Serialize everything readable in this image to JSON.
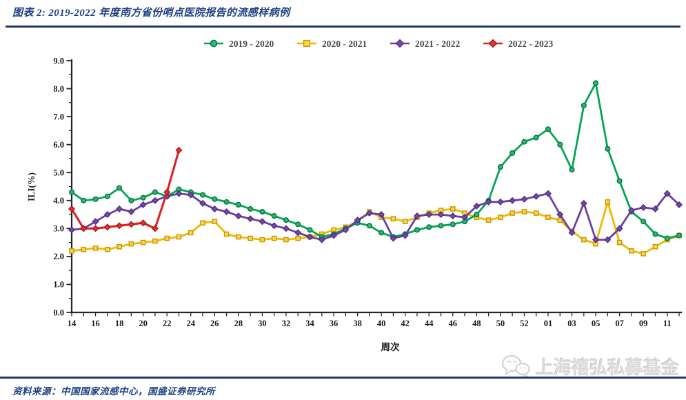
{
  "header": {
    "title": "图表 2: 2019-2022 年度南方省份哨点医院报告的流感样病例"
  },
  "footer": {
    "source": "资料来源：中国国家流感中心，国盛证券研究所",
    "watermark": "上海禧弘私募基金"
  },
  "colors": {
    "accent_navy": "#1F3864",
    "title_blue": "#1E4080",
    "axis": "#262626",
    "legend_text": "#4a4a4a"
  },
  "chart_data": {
    "type": "line",
    "title": "2019-2022 年度南方省份哨点医院报告的流感样病例",
    "xlabel": "周次",
    "ylabel": "ILI(%)",
    "ylim": [
      0,
      9
    ],
    "grid": false,
    "legend_position": "top",
    "x_count": 52,
    "x_tick_every": 2,
    "x_tick_labels": [
      "14",
      "16",
      "18",
      "20",
      "22",
      "24",
      "26",
      "28",
      "30",
      "32",
      "34",
      "36",
      "38",
      "40",
      "42",
      "44",
      "46",
      "48",
      "50",
      "52",
      "01",
      "03",
      "05",
      "07",
      "09",
      "11"
    ],
    "y_tick_labels": [
      "0.0",
      "1.0",
      "2.0",
      "3.0",
      "4.0",
      "5.0",
      "6.0",
      "7.0",
      "8.0",
      "9.0"
    ],
    "series": [
      {
        "name": "2019 - 2020",
        "marker": "circle",
        "color": "#00A651",
        "marker_fill": "#33B673",
        "marker_edge": "#007A3B",
        "values": [
          4.3,
          4.0,
          4.05,
          4.15,
          4.45,
          4.0,
          4.1,
          4.3,
          4.15,
          4.4,
          4.3,
          4.2,
          4.05,
          3.95,
          3.85,
          3.7,
          3.6,
          3.45,
          3.3,
          3.15,
          2.95,
          2.7,
          2.8,
          3.0,
          3.2,
          3.1,
          2.85,
          2.7,
          2.8,
          2.95,
          3.05,
          3.1,
          3.15,
          3.25,
          3.5,
          4.0,
          5.2,
          5.7,
          6.1,
          6.25,
          6.55,
          6.0,
          5.1,
          7.4,
          8.2,
          5.85,
          4.7,
          3.6,
          3.25,
          2.8,
          2.65,
          2.75
        ]
      },
      {
        "name": "2020 - 2021",
        "marker": "square",
        "color": "#EFB800",
        "marker_fill": "#FFD24D",
        "marker_edge": "#C79600",
        "values": [
          2.2,
          2.25,
          2.3,
          2.25,
          2.35,
          2.45,
          2.5,
          2.55,
          2.65,
          2.7,
          2.85,
          3.2,
          3.25,
          2.8,
          2.7,
          2.65,
          2.6,
          2.65,
          2.6,
          2.65,
          2.7,
          2.8,
          2.95,
          3.05,
          3.25,
          3.6,
          3.4,
          3.35,
          3.25,
          3.4,
          3.55,
          3.65,
          3.7,
          3.55,
          3.4,
          3.3,
          3.4,
          3.55,
          3.6,
          3.55,
          3.4,
          3.3,
          2.9,
          2.6,
          2.45,
          3.95,
          2.5,
          2.2,
          2.1,
          2.35,
          2.6,
          2.75
        ]
      },
      {
        "name": "2021 - 2022",
        "marker": "diamond",
        "color": "#6B3FA0",
        "marker_fill": "#7448AB",
        "marker_edge": "#502B82",
        "values": [
          2.95,
          3.0,
          3.25,
          3.5,
          3.7,
          3.6,
          3.85,
          4.0,
          4.15,
          4.25,
          4.2,
          3.9,
          3.7,
          3.6,
          3.45,
          3.35,
          3.25,
          3.1,
          3.0,
          2.85,
          2.7,
          2.6,
          2.75,
          2.95,
          3.3,
          3.55,
          3.5,
          2.65,
          2.75,
          3.45,
          3.5,
          3.5,
          3.45,
          3.4,
          3.8,
          3.95,
          3.95,
          4.0,
          4.05,
          4.15,
          4.25,
          3.5,
          2.85,
          3.9,
          2.6,
          2.6,
          3.0,
          3.65,
          3.75,
          3.7,
          4.25,
          3.85
        ]
      },
      {
        "name": "2022 - 2023",
        "marker": "diamond",
        "color": "#DD2222",
        "marker_fill": "#E03333",
        "marker_edge": "#A81414",
        "values": [
          3.7,
          3.0,
          3.0,
          3.05,
          3.1,
          3.15,
          3.2,
          3.0,
          4.3,
          5.8
        ]
      }
    ]
  }
}
